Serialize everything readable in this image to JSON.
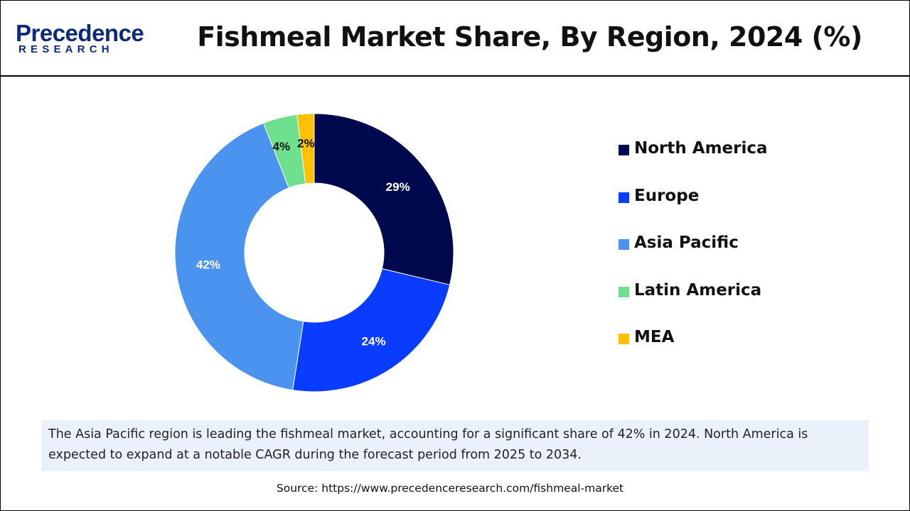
{
  "brand": {
    "name": "Precedence",
    "sub": "RESEARCH"
  },
  "chart_data": {
    "type": "pie",
    "variant": "donut",
    "title": "Fishmeal Market Share, By Region, 2024 (%)",
    "categories": [
      "North America",
      "Europe",
      "Asia Pacific",
      "Latin America",
      "MEA"
    ],
    "values": [
      29,
      24,
      42,
      4,
      2
    ],
    "labels": [
      "29%",
      "24%",
      "42%",
      "4%",
      "2%"
    ],
    "colors": [
      "#00094d",
      "#0a3cff",
      "#4a93ee",
      "#6ee08e",
      "#ffc000"
    ],
    "label_colors": [
      "#ffffff",
      "#ffffff",
      "#ffffff",
      "#111111",
      "#111111"
    ],
    "legend_position": "right"
  },
  "caption": "The Asia Pacific region is leading the fishmeal market, accounting for a significant share of 42% in 2024. North America is expected to expand at a notable CAGR during the forecast period from 2025 to 2034.",
  "source": "Source: https://www.precedenceresearch.com/fishmeal-market"
}
